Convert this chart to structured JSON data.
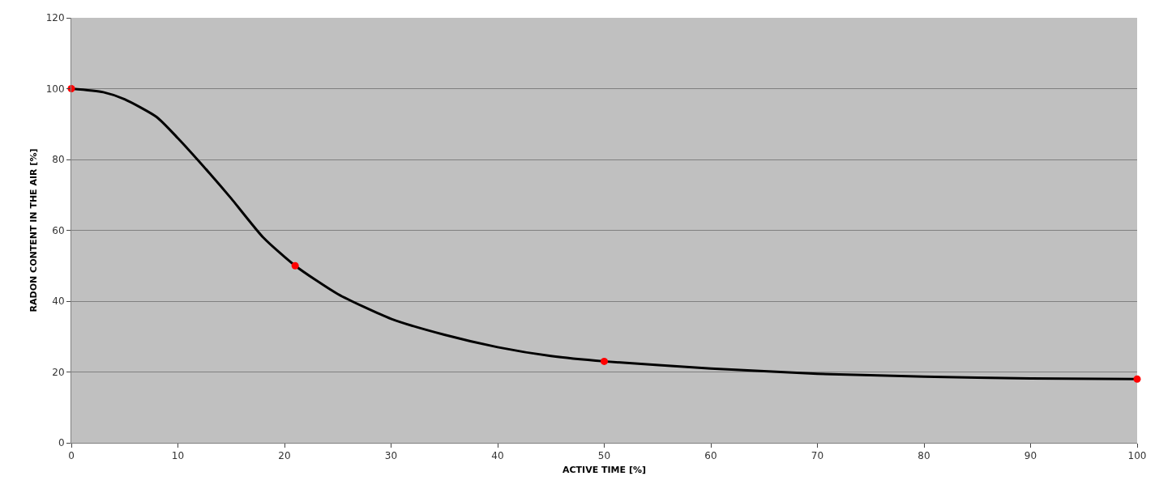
{
  "chart_data": {
    "type": "line",
    "xlabel": "ACTIVE TIME [%]",
    "ylabel": "RADON CONTENT IN THE AIR [%]",
    "xlim": [
      0,
      100
    ],
    "ylim": [
      0,
      120
    ],
    "xticks": [
      0,
      10,
      20,
      30,
      40,
      50,
      60,
      70,
      80,
      90,
      100
    ],
    "yticks": [
      0,
      20,
      40,
      60,
      80,
      100,
      120
    ],
    "grid": "y",
    "legend": false,
    "series": [
      {
        "type": "line",
        "color": "#000000",
        "marker": "none",
        "x": [
          0,
          3,
          5,
          8,
          10,
          13,
          15,
          18,
          21,
          25,
          30,
          35,
          40,
          45,
          50,
          60,
          70,
          80,
          90,
          100
        ],
        "values": [
          100,
          99,
          97,
          92,
          86,
          76,
          69,
          58,
          50,
          42,
          35,
          30.5,
          27,
          24.5,
          23,
          21,
          19.5,
          18.7,
          18.2,
          18
        ]
      },
      {
        "type": "scatter",
        "color": "#ff0000",
        "marker": "circle",
        "x": [
          0,
          21,
          50,
          100
        ],
        "values": [
          100,
          50,
          23,
          18
        ]
      }
    ]
  }
}
